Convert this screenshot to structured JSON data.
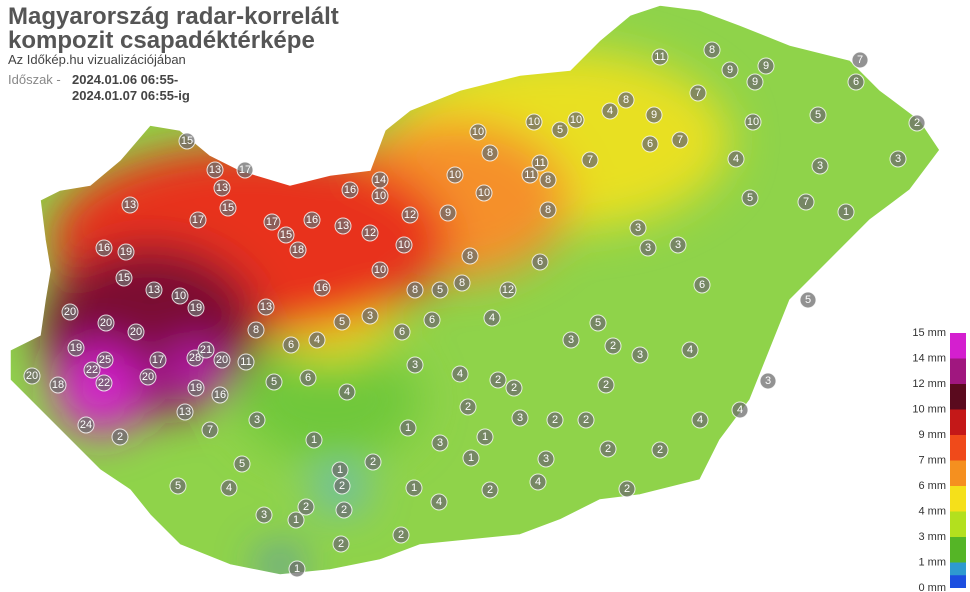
{
  "header": {
    "title_line1": "Magyarország radar-korrelált",
    "title_line2": "kompozit csapadéktérképe",
    "subtitle": "Az Időkép.hu vizualizációjában",
    "period_label": "Időszak -",
    "period_start": "2024.01.06 06:55-",
    "period_end": "2024.01.07 06:55-ig"
  },
  "legend": [
    {
      "label": "15 mm",
      "color": "#d41fcf"
    },
    {
      "label": "14 mm",
      "color": "#a0177f"
    },
    {
      "label": "12 mm",
      "color": "#5a0a1e"
    },
    {
      "label": "10 mm",
      "color": "#c41818"
    },
    {
      "label": "9 mm",
      "color": "#f04a1a"
    },
    {
      "label": "7 mm",
      "color": "#f5901f"
    },
    {
      "label": "6 mm",
      "color": "#f5e01a"
    },
    {
      "label": "4 mm",
      "color": "#b3e01e"
    },
    {
      "label": "3 mm",
      "color": "#55b526"
    },
    {
      "label": "1 mm",
      "color": "#2e9ad0"
    },
    {
      "label": "0 mm",
      "color": "#1c4fe0"
    }
  ],
  "stations": [
    15,
    13,
    17,
    13,
    13,
    17,
    15,
    17,
    16,
    15,
    18,
    13,
    16,
    14,
    16,
    19,
    15,
    13,
    10,
    19,
    20,
    20,
    20,
    19,
    25,
    22,
    22,
    18,
    20,
    24,
    2,
    17,
    20,
    28,
    21,
    20,
    19,
    16,
    13,
    11,
    8,
    13,
    16,
    10,
    12,
    9,
    8,
    12,
    6,
    8,
    10,
    10,
    8,
    11,
    8,
    7,
    4,
    8,
    11,
    8,
    9,
    9,
    10,
    5,
    2,
    3,
    3,
    5,
    7,
    1,
    3,
    3,
    3,
    6,
    5,
    4,
    3,
    2,
    3,
    5,
    4,
    3,
    4,
    2,
    3,
    2,
    2,
    2,
    2,
    2,
    1,
    3,
    1,
    1,
    3,
    2,
    2,
    4,
    4,
    3,
    2,
    4,
    2,
    1,
    2,
    1,
    2,
    2,
    2,
    1,
    3,
    4,
    5,
    5,
    7,
    3,
    1,
    4,
    6,
    5,
    6,
    4,
    5,
    3,
    6,
    6,
    8,
    5,
    8,
    10,
    12,
    10,
    10,
    10,
    11,
    5,
    10,
    6,
    7,
    4,
    9,
    7,
    6,
    7,
    9,
    1,
    2,
    2,
    4
  ]
}
